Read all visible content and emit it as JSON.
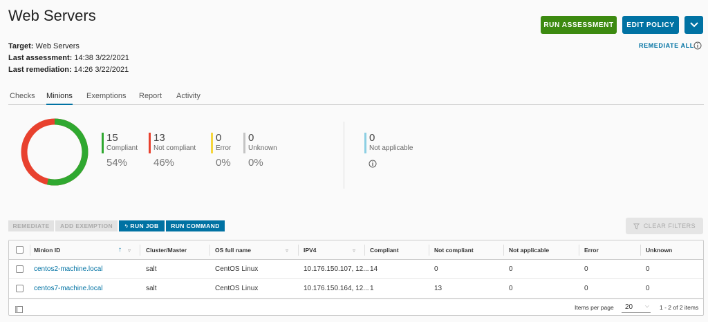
{
  "page": {
    "title": "Web Servers",
    "run_assessment": "RUN ASSESSMENT",
    "edit_policy": "EDIT POLICY",
    "remediate_all": "REMEDIATE ALL"
  },
  "meta": {
    "target_label": "Target:",
    "target_value": "Web Servers",
    "last_assessment_label": "Last assessment:",
    "last_assessment_value": "14:38 3/22/2021",
    "last_remediation_label": "Last remediation:",
    "last_remediation_value": "14:26 3/22/2021"
  },
  "tabs": [
    {
      "label": "Checks"
    },
    {
      "label": "Minions"
    },
    {
      "label": "Exemptions"
    },
    {
      "label": "Report"
    },
    {
      "label": "Activity"
    }
  ],
  "summary": {
    "compliant": {
      "count": "15",
      "label": "Compliant",
      "pct": "54%",
      "color": "#2fa830"
    },
    "not_compliant": {
      "count": "13",
      "label": "Not compliant",
      "pct": "46%",
      "color": "#e8412e"
    },
    "error": {
      "count": "0",
      "label": "Error",
      "pct": "0%",
      "color": "#f5d63d"
    },
    "unknown": {
      "count": "0",
      "label": "Unknown",
      "pct": "0%",
      "color": "#c4c4c4"
    },
    "not_applicable": {
      "count": "0",
      "label": "Not applicable",
      "color": "#8ccfe3"
    }
  },
  "toolbar": {
    "remediate": "REMEDIATE",
    "add_exemption": "ADD EXEMPTION",
    "run_job": "RUN JOB",
    "run_command": "RUN COMMAND",
    "clear_filters": "CLEAR FILTERS"
  },
  "table": {
    "columns": [
      "Minion ID",
      "Cluster/Master",
      "OS full name",
      "IPV4",
      "Compliant",
      "Not compliant",
      "Not applicable",
      "Error",
      "Unknown"
    ],
    "rows": [
      {
        "minion_id": "centos2-machine.local",
        "cluster": "salt",
        "os": "CentOS Linux",
        "ipv4": "10.176.150.107, 12...",
        "compliant": "14",
        "not_compliant": "0",
        "not_applicable": "0",
        "error": "0",
        "unknown": "0"
      },
      {
        "minion_id": "centos7-machine.local",
        "cluster": "salt",
        "os": "CentOS Linux",
        "ipv4": "10.176.150.164, 12...",
        "compliant": "1",
        "not_compliant": "13",
        "not_applicable": "0",
        "error": "0",
        "unknown": "0"
      }
    ],
    "footer": {
      "items_per_page_label": "Items per page",
      "items_per_page_value": "20",
      "range": "1 - 2 of 2 items"
    }
  }
}
